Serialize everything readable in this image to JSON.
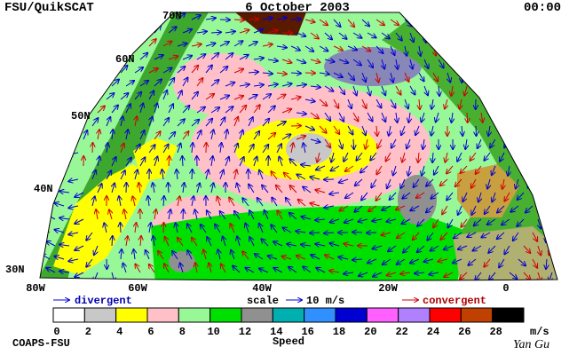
{
  "header": {
    "source": "FSU/QuikSCAT",
    "date": "6 October 2003",
    "time": "00:00"
  },
  "map": {
    "lat_labels": [
      "70N",
      "60N",
      "50N",
      "40N",
      "30N"
    ],
    "lon_labels": [
      "80W",
      "60W",
      "40W",
      "20W",
      "0"
    ]
  },
  "legend": {
    "divergent": "divergent",
    "scale": "scale",
    "scale_value": "10 m/s",
    "convergent": "convergent"
  },
  "colorbar": {
    "colors": [
      "#ffffff",
      "#c8c8c8",
      "#ffff00",
      "#ffc0c8",
      "#98f898",
      "#00e000",
      "#909090",
      "#00b0b0",
      "#3090ff",
      "#0000d0",
      "#ff60ff",
      "#b080ff",
      "#ff0000",
      "#c04000",
      "#000000"
    ],
    "ticks": [
      0,
      2,
      4,
      6,
      8,
      10,
      12,
      14,
      16,
      18,
      20,
      22,
      24,
      26,
      28
    ],
    "unit": "m/s",
    "title": "Speed"
  },
  "footer": {
    "credit": "COAPS-FSU",
    "author": "Yan Gu"
  }
}
